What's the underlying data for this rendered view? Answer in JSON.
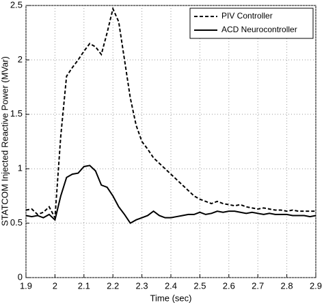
{
  "chart_data": {
    "type": "line",
    "xlabel": "Time (sec)",
    "ylabel": "STATCOM Injected Reactive Power (MVar)",
    "x": [
      1.9,
      1.92,
      1.94,
      1.96,
      1.98,
      2.0,
      2.02,
      2.04,
      2.06,
      2.08,
      2.1,
      2.12,
      2.14,
      2.16,
      2.18,
      2.2,
      2.22,
      2.24,
      2.26,
      2.28,
      2.3,
      2.32,
      2.34,
      2.36,
      2.38,
      2.4,
      2.42,
      2.44,
      2.46,
      2.48,
      2.5,
      2.52,
      2.54,
      2.56,
      2.58,
      2.6,
      2.62,
      2.64,
      2.66,
      2.68,
      2.7,
      2.72,
      2.74,
      2.76,
      2.78,
      2.8,
      2.82,
      2.84,
      2.86,
      2.88,
      2.9
    ],
    "series": [
      {
        "name": "PIV Controller",
        "color": "#000000",
        "linestyle": "dashed",
        "values": [
          0.62,
          0.63,
          0.58,
          0.6,
          0.65,
          0.55,
          1.3,
          1.85,
          1.93,
          2.0,
          2.08,
          2.15,
          2.12,
          2.05,
          2.25,
          2.47,
          2.35,
          2.0,
          1.65,
          1.4,
          1.25,
          1.18,
          1.1,
          1.05,
          1.0,
          0.95,
          0.9,
          0.85,
          0.8,
          0.75,
          0.72,
          0.7,
          0.68,
          0.7,
          0.68,
          0.67,
          0.66,
          0.67,
          0.65,
          0.64,
          0.63,
          0.64,
          0.63,
          0.62,
          0.62,
          0.61,
          0.62,
          0.61,
          0.61,
          0.61,
          0.61
        ]
      },
      {
        "name": "ACD Neurocontroller",
        "color": "#000000",
        "linestyle": "solid",
        "values": [
          0.57,
          0.56,
          0.57,
          0.55,
          0.58,
          0.53,
          0.75,
          0.92,
          0.95,
          0.96,
          1.02,
          1.03,
          0.98,
          0.85,
          0.83,
          0.75,
          0.65,
          0.58,
          0.5,
          0.53,
          0.55,
          0.57,
          0.61,
          0.57,
          0.55,
          0.55,
          0.56,
          0.57,
          0.58,
          0.58,
          0.6,
          0.58,
          0.59,
          0.61,
          0.6,
          0.61,
          0.61,
          0.6,
          0.59,
          0.6,
          0.59,
          0.58,
          0.59,
          0.58,
          0.58,
          0.58,
          0.57,
          0.57,
          0.57,
          0.56,
          0.57
        ]
      }
    ],
    "xlim": [
      1.9,
      2.9
    ],
    "xticks": [
      1.9,
      2,
      2.1,
      2.2,
      2.3,
      2.4,
      2.5,
      2.6,
      2.7,
      2.8,
      2.9
    ],
    "ylim": [
      0,
      2.5
    ],
    "yticks": [
      0,
      0.5,
      1,
      1.5,
      2,
      2.5
    ],
    "grid": true,
    "legend": "upper-right"
  }
}
